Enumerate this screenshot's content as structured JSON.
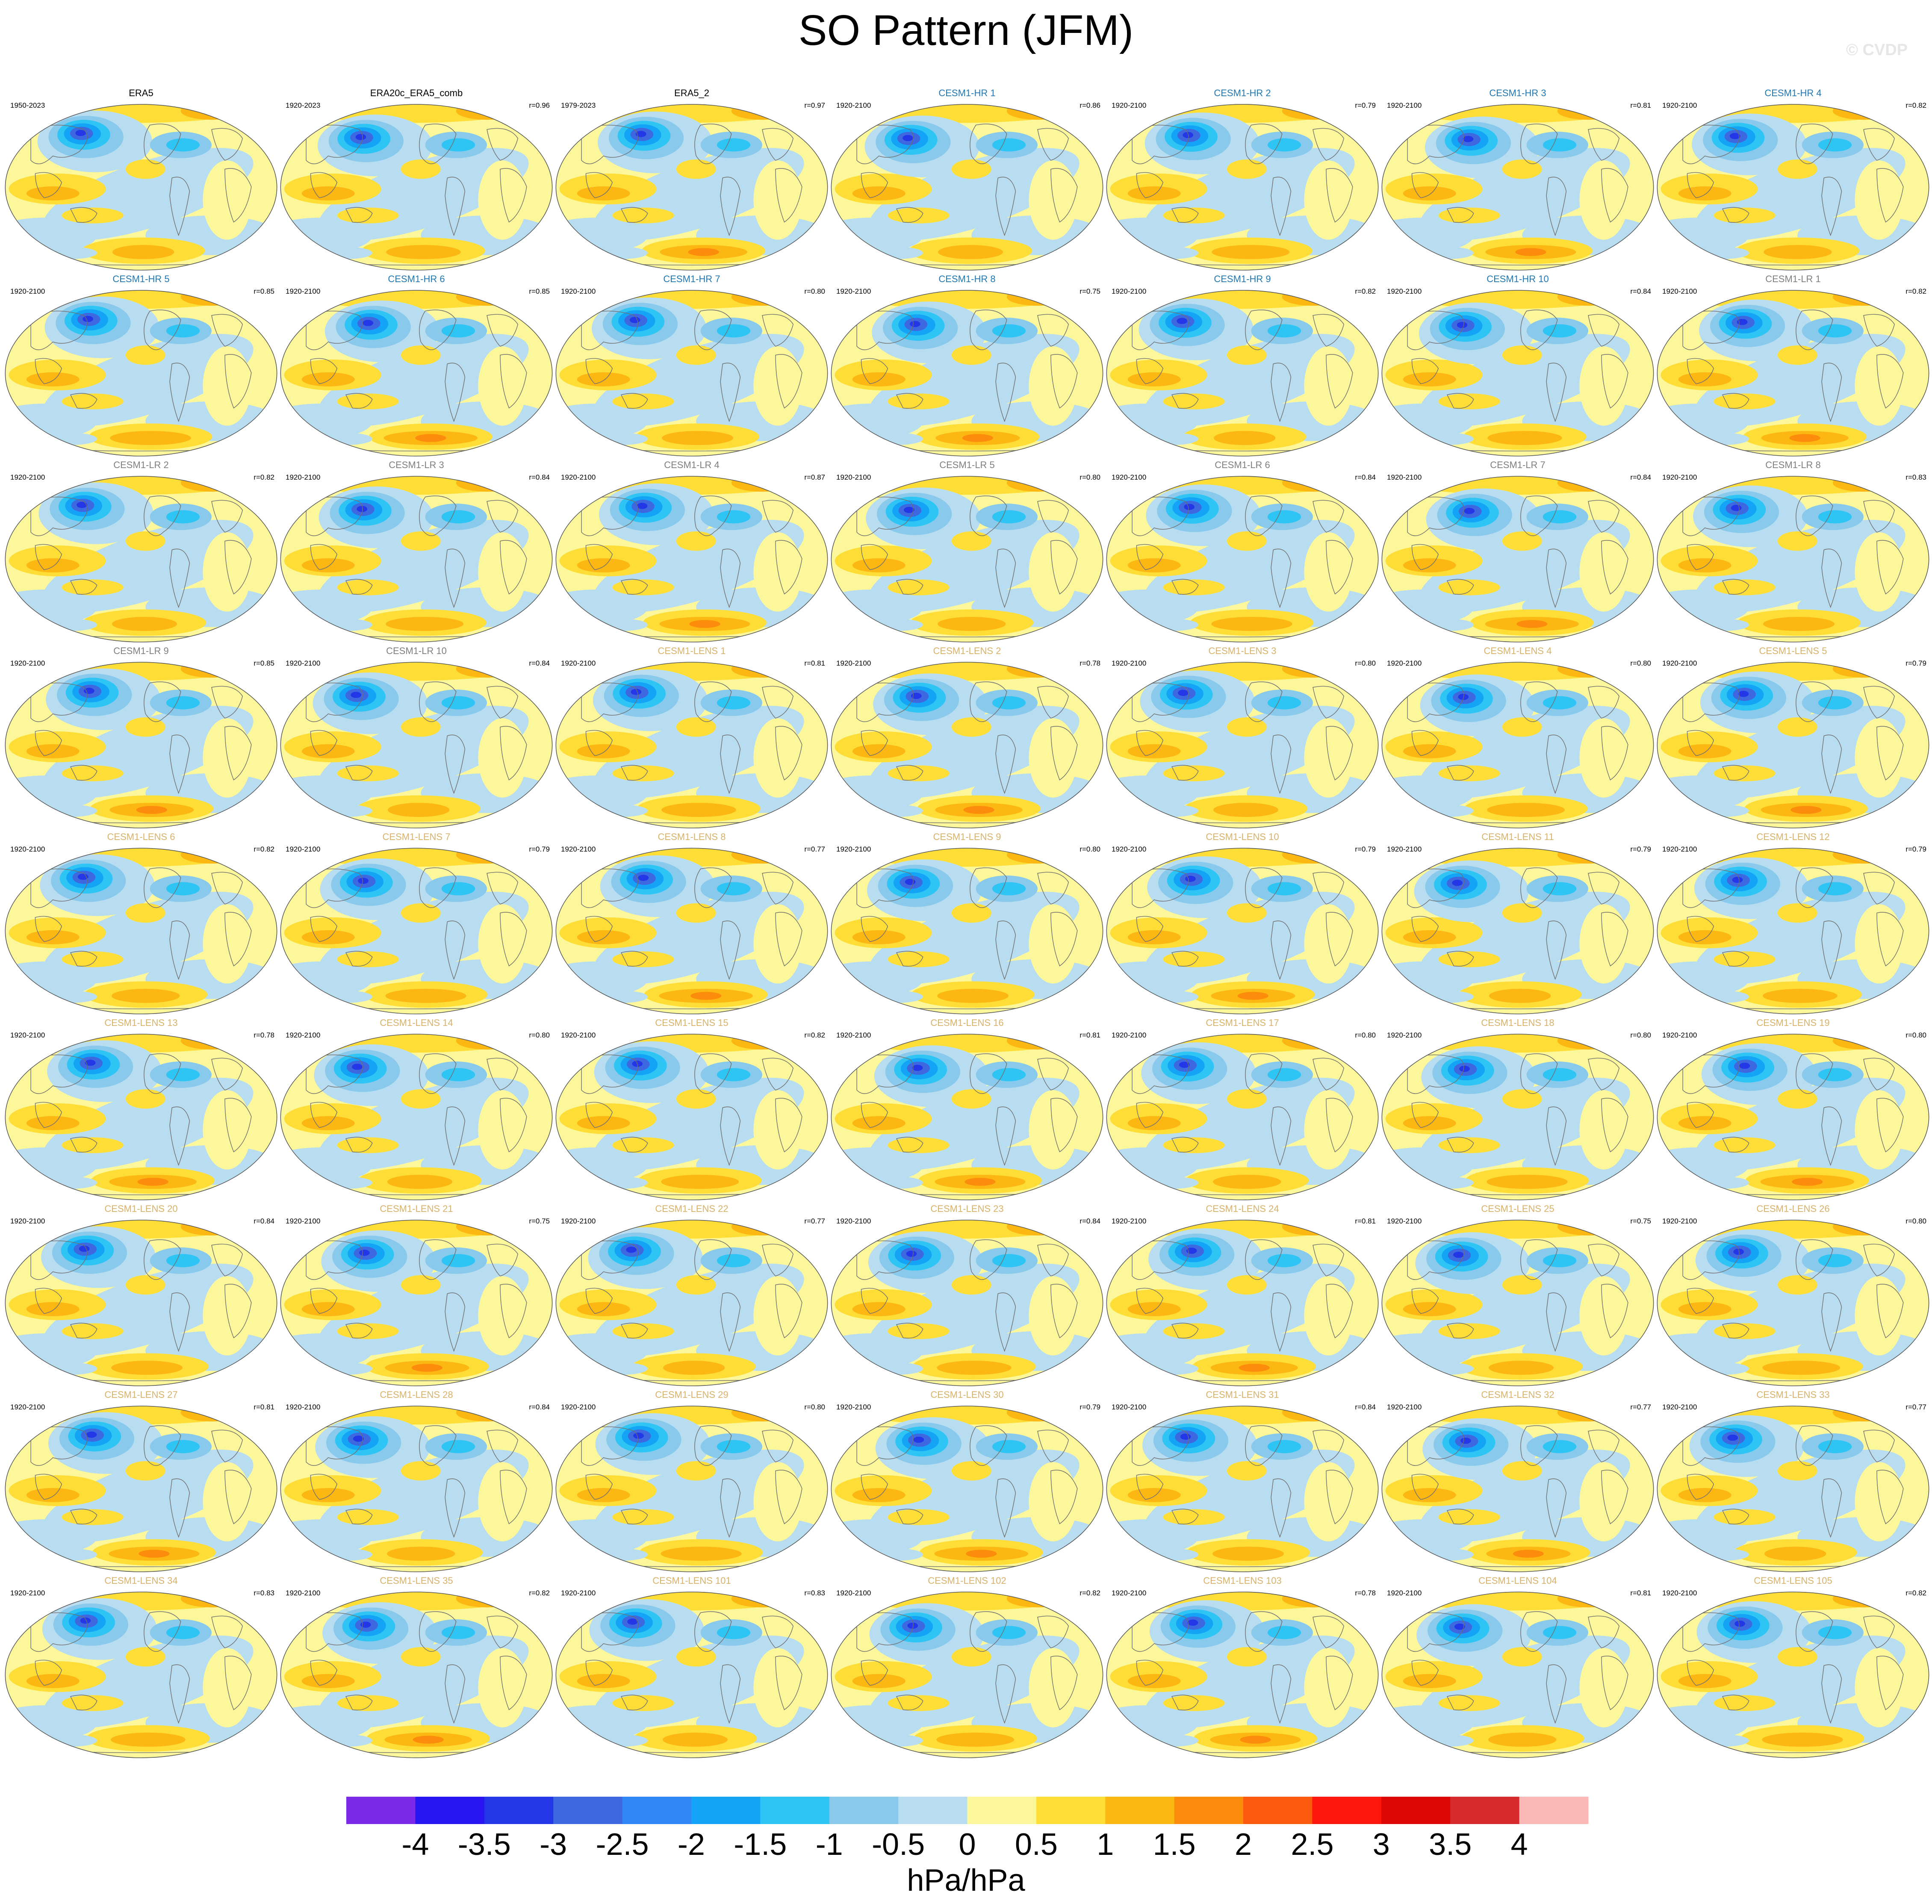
{
  "title": "SO Pattern (JFM)",
  "watermark": "© CVDP",
  "colors": {
    "observation_label": "#000000",
    "cesm1_hr_label": "#1f77b4",
    "cesm1_lr_label": "#7f7f7f",
    "cesm1_lens_label": "#d9b26a",
    "coastline": "#6f6f6f",
    "map_border": "#555555"
  },
  "chart_data": {
    "type": "heatmap",
    "description_variable": "SO pattern regression",
    "panels": [
      {
        "name": "ERA5",
        "period": "1950-2023",
        "r": "",
        "group": "obs"
      },
      {
        "name": "ERA20c_ERA5_comb",
        "period": "1920-2023",
        "r": "r=0.96",
        "group": "obs"
      },
      {
        "name": "ERA5_2",
        "period": "1979-2023",
        "r": "r=0.97",
        "group": "obs"
      },
      {
        "name": "CESM1-HR 1",
        "period": "1920-2100",
        "r": "r=0.86",
        "group": "hr"
      },
      {
        "name": "CESM1-HR 2",
        "period": "1920-2100",
        "r": "r=0.79",
        "group": "hr"
      },
      {
        "name": "CESM1-HR 3",
        "period": "1920-2100",
        "r": "r=0.81",
        "group": "hr"
      },
      {
        "name": "CESM1-HR 4",
        "period": "1920-2100",
        "r": "r=0.82",
        "group": "hr"
      },
      {
        "name": "CESM1-HR 5",
        "period": "1920-2100",
        "r": "r=0.85",
        "group": "hr"
      },
      {
        "name": "CESM1-HR 6",
        "period": "1920-2100",
        "r": "r=0.85",
        "group": "hr"
      },
      {
        "name": "CESM1-HR 7",
        "period": "1920-2100",
        "r": "r=0.80",
        "group": "hr"
      },
      {
        "name": "CESM1-HR 8",
        "period": "1920-2100",
        "r": "r=0.75",
        "group": "hr"
      },
      {
        "name": "CESM1-HR 9",
        "period": "1920-2100",
        "r": "r=0.82",
        "group": "hr"
      },
      {
        "name": "CESM1-HR 10",
        "period": "1920-2100",
        "r": "r=0.84",
        "group": "hr"
      },
      {
        "name": "CESM1-LR 1",
        "period": "1920-2100",
        "r": "r=0.82",
        "group": "lr"
      },
      {
        "name": "CESM1-LR 2",
        "period": "1920-2100",
        "r": "r=0.82",
        "group": "lr"
      },
      {
        "name": "CESM1-LR 3",
        "period": "1920-2100",
        "r": "r=0.84",
        "group": "lr"
      },
      {
        "name": "CESM1-LR 4",
        "period": "1920-2100",
        "r": "r=0.87",
        "group": "lr"
      },
      {
        "name": "CESM1-LR 5",
        "period": "1920-2100",
        "r": "r=0.80",
        "group": "lr"
      },
      {
        "name": "CESM1-LR 6",
        "period": "1920-2100",
        "r": "r=0.84",
        "group": "lr"
      },
      {
        "name": "CESM1-LR 7",
        "period": "1920-2100",
        "r": "r=0.84",
        "group": "lr"
      },
      {
        "name": "CESM1-LR 8",
        "period": "1920-2100",
        "r": "r=0.83",
        "group": "lr"
      },
      {
        "name": "CESM1-LR 9",
        "period": "1920-2100",
        "r": "r=0.85",
        "group": "lr"
      },
      {
        "name": "CESM1-LR 10",
        "period": "1920-2100",
        "r": "r=0.84",
        "group": "lr"
      },
      {
        "name": "CESM1-LENS 1",
        "period": "1920-2100",
        "r": "r=0.81",
        "group": "lens"
      },
      {
        "name": "CESM1-LENS 2",
        "period": "1920-2100",
        "r": "r=0.78",
        "group": "lens"
      },
      {
        "name": "CESM1-LENS 3",
        "period": "1920-2100",
        "r": "r=0.80",
        "group": "lens"
      },
      {
        "name": "CESM1-LENS 4",
        "period": "1920-2100",
        "r": "r=0.80",
        "group": "lens"
      },
      {
        "name": "CESM1-LENS 5",
        "period": "1920-2100",
        "r": "r=0.79",
        "group": "lens"
      },
      {
        "name": "CESM1-LENS 6",
        "period": "1920-2100",
        "r": "r=0.82",
        "group": "lens"
      },
      {
        "name": "CESM1-LENS 7",
        "period": "1920-2100",
        "r": "r=0.79",
        "group": "lens"
      },
      {
        "name": "CESM1-LENS 8",
        "period": "1920-2100",
        "r": "r=0.77",
        "group": "lens"
      },
      {
        "name": "CESM1-LENS 9",
        "period": "1920-2100",
        "r": "r=0.80",
        "group": "lens"
      },
      {
        "name": "CESM1-LENS 10",
        "period": "1920-2100",
        "r": "r=0.79",
        "group": "lens"
      },
      {
        "name": "CESM1-LENS 11",
        "period": "1920-2100",
        "r": "r=0.79",
        "group": "lens"
      },
      {
        "name": "CESM1-LENS 12",
        "period": "1920-2100",
        "r": "r=0.79",
        "group": "lens"
      },
      {
        "name": "CESM1-LENS 13",
        "period": "1920-2100",
        "r": "r=0.78",
        "group": "lens"
      },
      {
        "name": "CESM1-LENS 14",
        "period": "1920-2100",
        "r": "r=0.80",
        "group": "lens"
      },
      {
        "name": "CESM1-LENS 15",
        "period": "1920-2100",
        "r": "r=0.82",
        "group": "lens"
      },
      {
        "name": "CESM1-LENS 16",
        "period": "1920-2100",
        "r": "r=0.81",
        "group": "lens"
      },
      {
        "name": "CESM1-LENS 17",
        "period": "1920-2100",
        "r": "r=0.80",
        "group": "lens"
      },
      {
        "name": "CESM1-LENS 18",
        "period": "1920-2100",
        "r": "r=0.80",
        "group": "lens"
      },
      {
        "name": "CESM1-LENS 19",
        "period": "1920-2100",
        "r": "r=0.80",
        "group": "lens"
      },
      {
        "name": "CESM1-LENS 20",
        "period": "1920-2100",
        "r": "r=0.84",
        "group": "lens"
      },
      {
        "name": "CESM1-LENS 21",
        "period": "1920-2100",
        "r": "r=0.75",
        "group": "lens"
      },
      {
        "name": "CESM1-LENS 22",
        "period": "1920-2100",
        "r": "r=0.77",
        "group": "lens"
      },
      {
        "name": "CESM1-LENS 23",
        "period": "1920-2100",
        "r": "r=0.84",
        "group": "lens"
      },
      {
        "name": "CESM1-LENS 24",
        "period": "1920-2100",
        "r": "r=0.81",
        "group": "lens"
      },
      {
        "name": "CESM1-LENS 25",
        "period": "1920-2100",
        "r": "r=0.75",
        "group": "lens"
      },
      {
        "name": "CESM1-LENS 26",
        "period": "1920-2100",
        "r": "r=0.80",
        "group": "lens"
      },
      {
        "name": "CESM1-LENS 27",
        "period": "1920-2100",
        "r": "r=0.81",
        "group": "lens"
      },
      {
        "name": "CESM1-LENS 28",
        "period": "1920-2100",
        "r": "r=0.84",
        "group": "lens"
      },
      {
        "name": "CESM1-LENS 29",
        "period": "1920-2100",
        "r": "r=0.80",
        "group": "lens"
      },
      {
        "name": "CESM1-LENS 30",
        "period": "1920-2100",
        "r": "r=0.79",
        "group": "lens"
      },
      {
        "name": "CESM1-LENS 31",
        "period": "1920-2100",
        "r": "r=0.84",
        "group": "lens"
      },
      {
        "name": "CESM1-LENS 32",
        "period": "1920-2100",
        "r": "r=0.77",
        "group": "lens"
      },
      {
        "name": "CESM1-LENS 33",
        "period": "1920-2100",
        "r": "r=0.77",
        "group": "lens"
      },
      {
        "name": "CESM1-LENS 34",
        "period": "1920-2100",
        "r": "r=0.83",
        "group": "lens"
      },
      {
        "name": "CESM1-LENS 35",
        "period": "1920-2100",
        "r": "r=0.82",
        "group": "lens"
      },
      {
        "name": "CESM1-LENS 101",
        "period": "1920-2100",
        "r": "r=0.83",
        "group": "lens"
      },
      {
        "name": "CESM1-LENS 102",
        "period": "1920-2100",
        "r": "r=0.82",
        "group": "lens"
      },
      {
        "name": "CESM1-LENS 103",
        "period": "1920-2100",
        "r": "r=0.78",
        "group": "lens"
      },
      {
        "name": "CESM1-LENS 104",
        "period": "1920-2100",
        "r": "r=0.81",
        "group": "lens"
      },
      {
        "name": "CESM1-LENS 105",
        "period": "1920-2100",
        "r": "r=0.82",
        "group": "lens"
      }
    ],
    "colorbar": {
      "units": "hPa/hPa",
      "tick_labels": [
        "-4",
        "-3.5",
        "-3",
        "-2.5",
        "-2",
        "-1.5",
        "-1",
        "-0.5",
        "0",
        "0.5",
        "1",
        "1.5",
        "2",
        "2.5",
        "3",
        "3.5",
        "4"
      ],
      "colors": [
        "#7b2ae8",
        "#2914f2",
        "#2337e6",
        "#3e68e0",
        "#2f86f5",
        "#15a4f5",
        "#2ec5f5",
        "#89c9ec",
        "#b9ddf0",
        "#fbf79a",
        "#fddd36",
        "#fcb712",
        "#fc8c0c",
        "#fb5a0f",
        "#fc160e",
        "#de0707",
        "#d62b2c",
        "#fbb8b6"
      ]
    }
  }
}
